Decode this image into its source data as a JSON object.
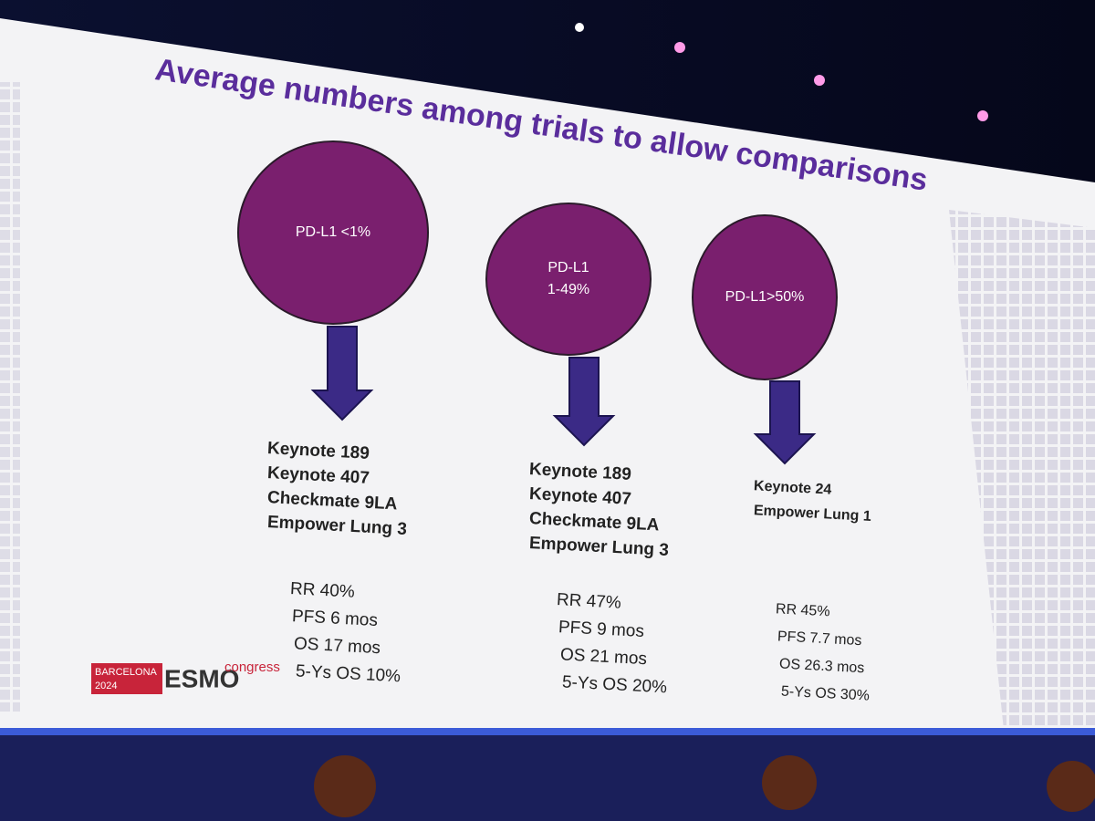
{
  "header": {
    "title": "Average numbers among trials to allow comparisons"
  },
  "columns": [
    {
      "circle": [
        "PD-L1 <1%"
      ],
      "trials": [
        "Keynote 189",
        "Keynote 407",
        "Checkmate 9LA",
        "Empower Lung 3"
      ],
      "stats": [
        "RR 40%",
        "PFS 6 mos",
        "OS 17 mos",
        "5-Ys OS 10%"
      ]
    },
    {
      "circle": [
        "PD-L1",
        "1-49%"
      ],
      "trials": [
        "Keynote 189",
        "Keynote 407",
        "Checkmate 9LA",
        "Empower Lung 3"
      ],
      "stats": [
        "RR 47%",
        "PFS 9 mos",
        "OS 21 mos",
        "5-Ys OS 20%"
      ]
    },
    {
      "circle": [
        "PD-L1>50%"
      ],
      "trials": [
        "Keynote 24",
        "Empower Lung 1"
      ],
      "stats": [
        "RR 45%",
        "PFS 7.7 mos",
        "OS 26.3 mos",
        "5-Ys OS 30%"
      ]
    }
  ],
  "logo": {
    "city": "BARCELONA",
    "year": "2024",
    "brand": "ESMO",
    "event": "congress"
  }
}
